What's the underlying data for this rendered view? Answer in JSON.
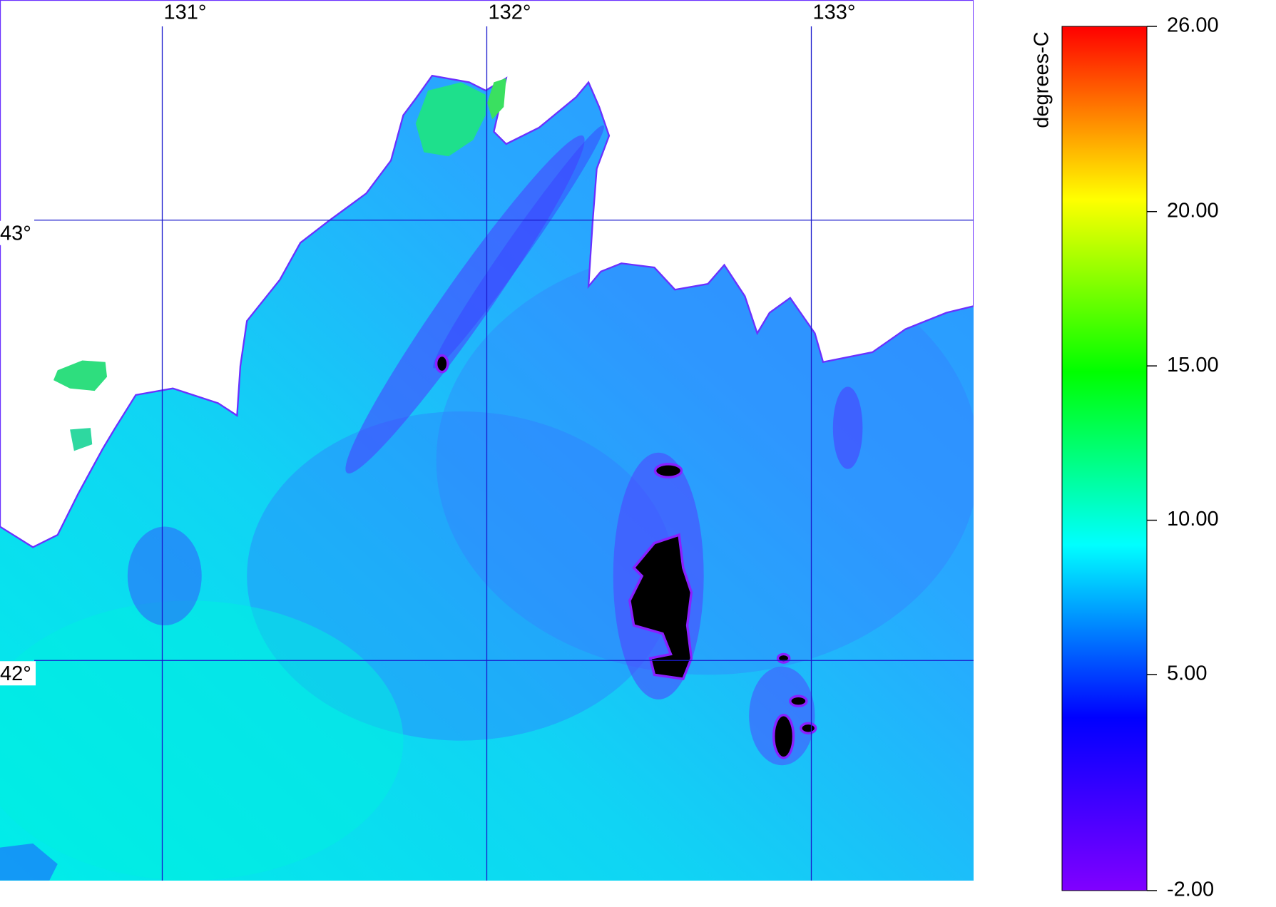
{
  "map": {
    "lonlim": [
      130.5,
      133.5
    ],
    "latlim": [
      41.5,
      43.5
    ],
    "lon_ticks": [
      {
        "value": 131,
        "label": "131°"
      },
      {
        "value": 132,
        "label": "132°"
      },
      {
        "value": 133,
        "label": "133°"
      }
    ],
    "lat_ticks": [
      {
        "value": 43,
        "label": "43°"
      },
      {
        "value": 42,
        "label": "42°"
      }
    ],
    "grid_color": "#1a1acc"
  },
  "colorbar": {
    "label": "degrees-C",
    "range": [
      -2,
      26
    ],
    "ticks": [
      {
        "value": 26,
        "label": "26.00"
      },
      {
        "value": 20,
        "label": "20.00"
      },
      {
        "value": 15,
        "label": "15.00"
      },
      {
        "value": 10,
        "label": "10.00"
      },
      {
        "value": 5,
        "label": "5.00"
      },
      {
        "value": -2,
        "label": "-2.00"
      }
    ],
    "colors": [
      "#8000ff",
      "#0000ff",
      "#00ffff",
      "#00ff00",
      "#ffff00",
      "#ff0000"
    ]
  }
}
